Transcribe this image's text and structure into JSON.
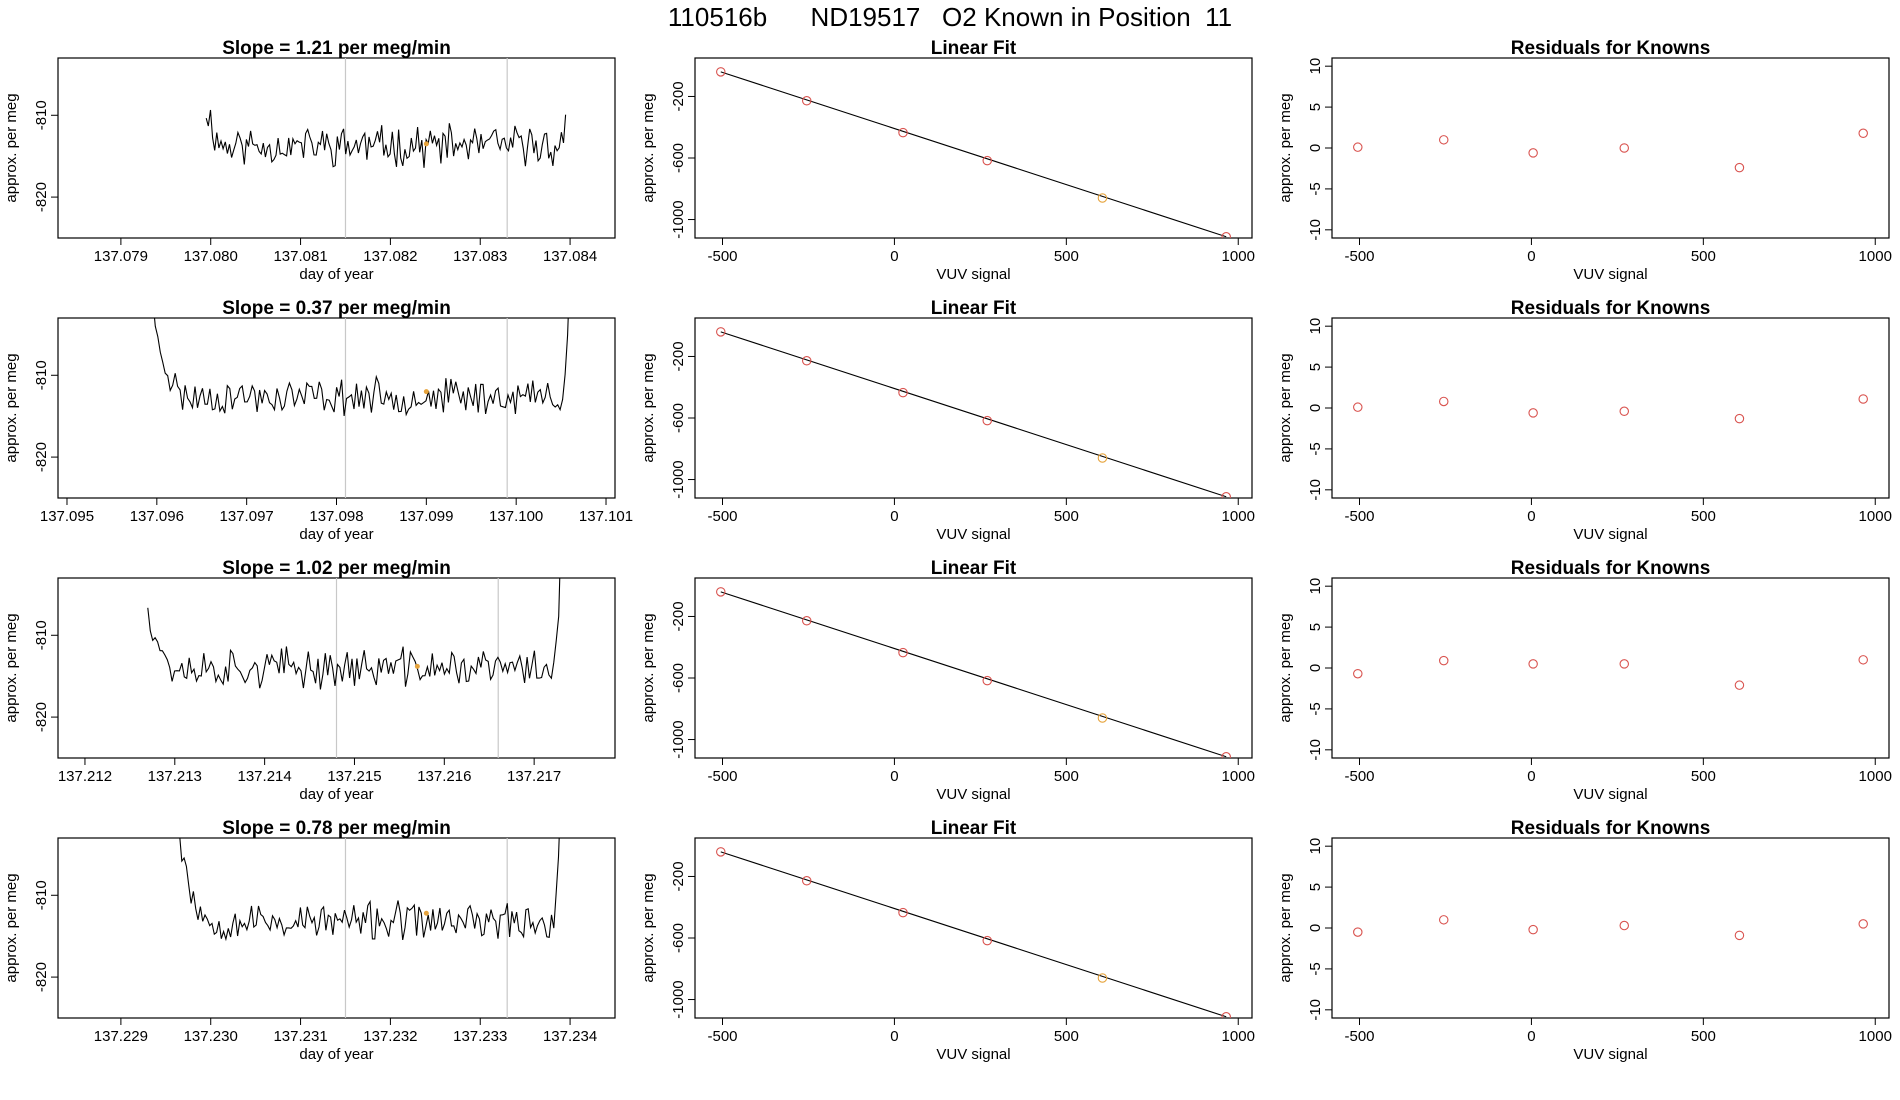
{
  "figure": {
    "title": "110516b      ND19517   O2 Known in Position  11"
  },
  "chart_data": [
    {
      "type": "line",
      "title": "Slope =  1.21  per meg/min",
      "xlabel": "day of year",
      "ylabel": "approx. per meg",
      "xlim": [
        137.0783,
        137.0845
      ],
      "ylim": [
        -825,
        -803
      ],
      "xticks": [
        "137.079",
        "137.080",
        "137.081",
        "137.082",
        "137.083",
        "137.084"
      ],
      "yticks": [
        "-810",
        "-820"
      ],
      "trace": {
        "x_start": 137.07995,
        "x_end": 137.08395,
        "base": -813.7,
        "amplitude": 1.9,
        "seed": 11,
        "left_rise_start": 137.0798,
        "right_rise_start": 137.084
      },
      "vertical_lines": [
        137.0815,
        137.0833
      ],
      "marker": {
        "x": 137.0824,
        "y": -813.5
      },
      "line_color": "#000000",
      "vline_color": "#c8c8c8",
      "marker_color": "#e6a33c"
    },
    {
      "type": "scatter",
      "title": "Linear Fit",
      "xlabel": "VUV signal",
      "ylabel": "approx. per meg",
      "xlim": [
        -580,
        1040
      ],
      "ylim": [
        -1120,
        50
      ],
      "xticks": [
        "-500",
        "0",
        "500",
        "1000"
      ],
      "yticks": [
        "-200",
        "-600",
        "-1000"
      ],
      "x": [
        -505,
        -255,
        25,
        270,
        605,
        965
      ],
      "y": [
        -40,
        -228,
        -435,
        -617,
        -860,
        -1112
      ],
      "fit_line": {
        "x": [
          -505,
          965
        ],
        "y": [
          -40,
          -1112
        ]
      },
      "highlight_index": 4,
      "point_color": "#d9534f",
      "highlight_color": "#e6a33c"
    },
    {
      "type": "scatter",
      "title": "Residuals for Knowns",
      "xlabel": "VUV signal",
      "ylabel": "approx. per meg",
      "xlim": [
        -580,
        1040
      ],
      "ylim": [
        -11,
        11
      ],
      "xticks": [
        "-500",
        "0",
        "500",
        "1000"
      ],
      "yticks": [
        "10",
        "5",
        "0",
        "-5",
        "-10"
      ],
      "x": [
        -505,
        -255,
        5,
        270,
        605,
        965
      ],
      "y": [
        0.1,
        1.0,
        -0.6,
        0.0,
        -2.4,
        1.8
      ],
      "point_color": "#d9534f"
    },
    {
      "type": "line",
      "title": "Slope =  0.37  per meg/min",
      "xlabel": "day of year",
      "ylabel": "approx. per meg",
      "xlim": [
        137.0949,
        137.1011
      ],
      "ylim": [
        -825,
        -803
      ],
      "xticks": [
        "137.095",
        "137.096",
        "137.097",
        "137.098",
        "137.099",
        "137.100",
        "137.101"
      ],
      "yticks": [
        "-810",
        "-820"
      ],
      "trace": {
        "x_start": 137.0959,
        "x_end": 137.1006,
        "base": -812.6,
        "amplitude": 1.7,
        "seed": 23,
        "left_rise_start": 137.0959,
        "right_rise_start": 137.1006
      },
      "vertical_lines": [
        137.0981,
        137.0999
      ],
      "marker": {
        "x": 137.099,
        "y": -812.0
      },
      "line_color": "#000000",
      "vline_color": "#c8c8c8",
      "marker_color": "#e6a33c"
    },
    {
      "type": "scatter",
      "title": "Linear Fit",
      "xlabel": "VUV signal",
      "ylabel": "approx. per meg",
      "xlim": [
        -580,
        1040
      ],
      "ylim": [
        -1120,
        50
      ],
      "xticks": [
        "-500",
        "0",
        "500",
        "1000"
      ],
      "yticks": [
        "-200",
        "-600",
        "-1000"
      ],
      "x": [
        -505,
        -255,
        25,
        270,
        605,
        965
      ],
      "y": [
        -40,
        -228,
        -435,
        -617,
        -860,
        -1112
      ],
      "fit_line": {
        "x": [
          -505,
          965
        ],
        "y": [
          -40,
          -1112
        ]
      },
      "highlight_index": 4,
      "point_color": "#d9534f",
      "highlight_color": "#e6a33c"
    },
    {
      "type": "scatter",
      "title": "Residuals for Knowns",
      "xlabel": "VUV signal",
      "ylabel": "approx. per meg",
      "xlim": [
        -580,
        1040
      ],
      "ylim": [
        -11,
        11
      ],
      "xticks": [
        "-500",
        "0",
        "500",
        "1000"
      ],
      "yticks": [
        "10",
        "5",
        "0",
        "-5",
        "-10"
      ],
      "x": [
        -505,
        -255,
        5,
        270,
        605,
        965
      ],
      "y": [
        0.1,
        0.8,
        -0.6,
        -0.4,
        -1.3,
        1.1
      ],
      "point_color": "#d9534f"
    },
    {
      "type": "line",
      "title": "Slope =  1.02  per meg/min",
      "xlabel": "day of year",
      "ylabel": "approx. per meg",
      "xlim": [
        137.2117,
        137.2179
      ],
      "ylim": [
        -825,
        -803
      ],
      "xticks": [
        "137.212",
        "137.213",
        "137.214",
        "137.215",
        "137.216",
        "137.217"
      ],
      "yticks": [
        "-810",
        "-820"
      ],
      "trace": {
        "x_start": 137.2127,
        "x_end": 137.2173,
        "base": -814.0,
        "amplitude": 1.9,
        "seed": 37,
        "left_rise_start": 137.2126,
        "right_rise_start": 137.2173
      },
      "vertical_lines": [
        137.2148,
        137.2166
      ],
      "marker": {
        "x": 137.2157,
        "y": -813.8
      },
      "line_color": "#000000",
      "vline_color": "#c8c8c8",
      "marker_color": "#e6a33c"
    },
    {
      "type": "scatter",
      "title": "Linear Fit",
      "xlabel": "VUV signal",
      "ylabel": "approx. per meg",
      "xlim": [
        -580,
        1040
      ],
      "ylim": [
        -1120,
        50
      ],
      "xticks": [
        "-500",
        "0",
        "500",
        "1000"
      ],
      "yticks": [
        "-200",
        "-600",
        "-1000"
      ],
      "x": [
        -505,
        -255,
        25,
        270,
        605,
        965
      ],
      "y": [
        -40,
        -228,
        -435,
        -617,
        -860,
        -1112
      ],
      "fit_line": {
        "x": [
          -505,
          965
        ],
        "y": [
          -40,
          -1112
        ]
      },
      "highlight_index": 4,
      "point_color": "#d9534f",
      "highlight_color": "#e6a33c"
    },
    {
      "type": "scatter",
      "title": "Residuals for Knowns",
      "xlabel": "VUV signal",
      "ylabel": "approx. per meg",
      "xlim": [
        -580,
        1040
      ],
      "ylim": [
        -11,
        11
      ],
      "xticks": [
        "-500",
        "0",
        "500",
        "1000"
      ],
      "yticks": [
        "10",
        "5",
        "0",
        "-5",
        "-10"
      ],
      "x": [
        -505,
        -255,
        5,
        270,
        605,
        965
      ],
      "y": [
        -0.7,
        0.9,
        0.5,
        0.5,
        -2.1,
        1.0
      ],
      "point_color": "#d9534f"
    },
    {
      "type": "line",
      "title": "Slope =  0.78  per meg/min",
      "xlabel": "day of year",
      "ylabel": "approx. per meg",
      "xlim": [
        137.2283,
        137.2345
      ],
      "ylim": [
        -825,
        -803
      ],
      "xticks": [
        "137.229",
        "137.230",
        "137.231",
        "137.232",
        "137.233",
        "137.234"
      ],
      "yticks": [
        "-810",
        "-820"
      ],
      "trace": {
        "x_start": 137.2296,
        "x_end": 137.234,
        "base": -813.2,
        "amplitude": 1.8,
        "seed": 53,
        "left_rise_start": 137.2296,
        "right_rise_start": 137.2339
      },
      "vertical_lines": [
        137.2315,
        137.2333
      ],
      "marker": {
        "x": 137.2324,
        "y": -812.2
      },
      "line_color": "#000000",
      "vline_color": "#c8c8c8",
      "marker_color": "#e6a33c"
    },
    {
      "type": "scatter",
      "title": "Linear Fit",
      "xlabel": "VUV signal",
      "ylabel": "approx. per meg",
      "xlim": [
        -580,
        1040
      ],
      "ylim": [
        -1120,
        50
      ],
      "xticks": [
        "-500",
        "0",
        "500",
        "1000"
      ],
      "yticks": [
        "-200",
        "-600",
        "-1000"
      ],
      "x": [
        -505,
        -255,
        25,
        270,
        605,
        965
      ],
      "y": [
        -40,
        -228,
        -435,
        -617,
        -860,
        -1112
      ],
      "fit_line": {
        "x": [
          -505,
          965
        ],
        "y": [
          -40,
          -1112
        ]
      },
      "highlight_index": 4,
      "point_color": "#d9534f",
      "highlight_color": "#e6a33c"
    },
    {
      "type": "scatter",
      "title": "Residuals for Knowns",
      "xlabel": "VUV signal",
      "ylabel": "approx. per meg",
      "xlim": [
        -580,
        1040
      ],
      "ylim": [
        -11,
        11
      ],
      "xticks": [
        "-500",
        "0",
        "500",
        "1000"
      ],
      "yticks": [
        "10",
        "5",
        "0",
        "-5",
        "-10"
      ],
      "x": [
        -505,
        -255,
        5,
        270,
        605,
        965
      ],
      "y": [
        -0.5,
        1.0,
        -0.2,
        0.3,
        -0.9,
        0.5
      ],
      "point_color": "#d9534f"
    }
  ]
}
